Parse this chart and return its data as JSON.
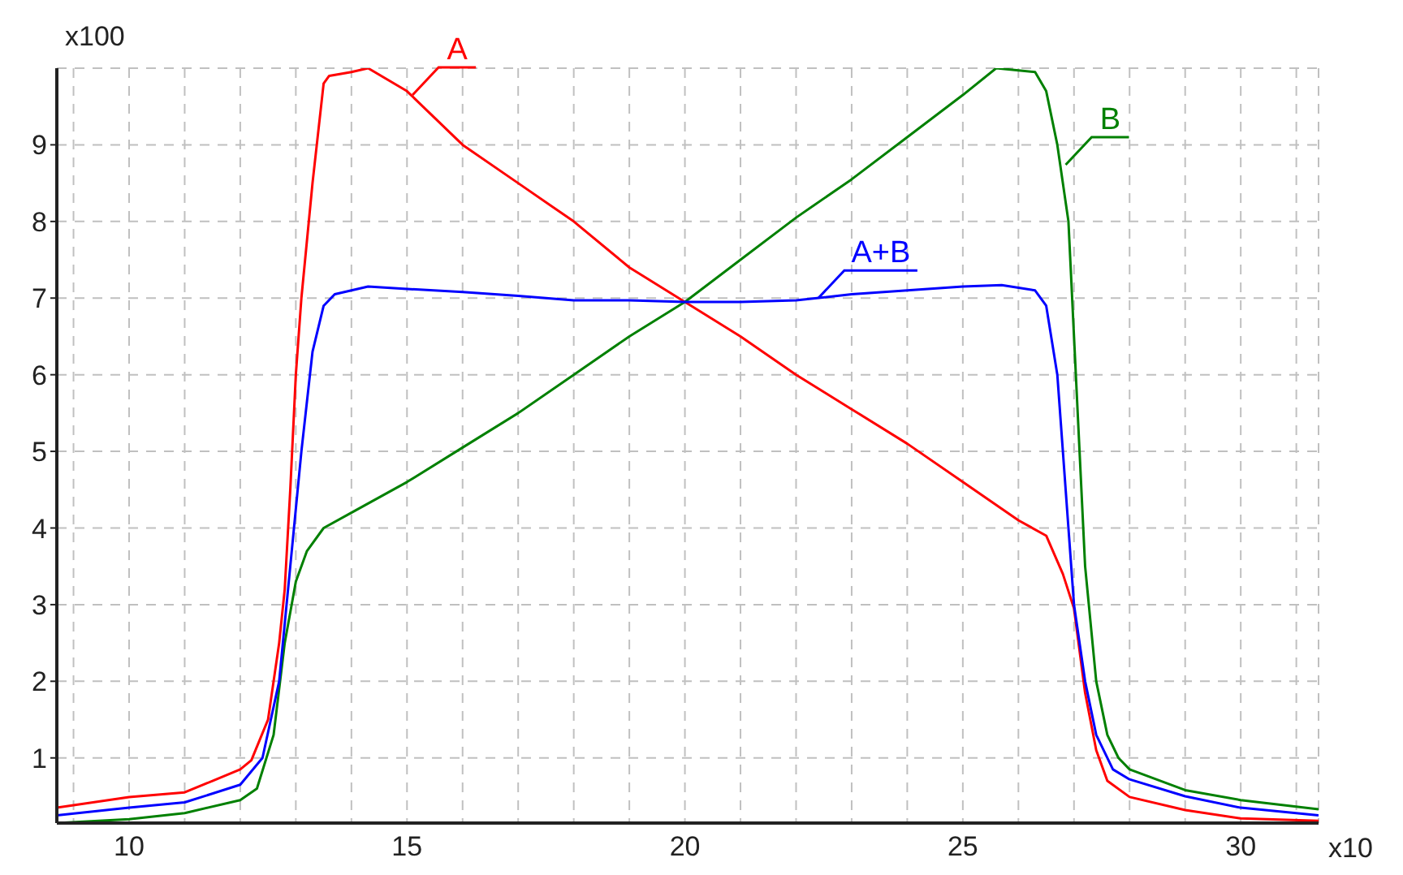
{
  "chart_data": {
    "type": "line",
    "xlabel": "x10",
    "ylabel": "x100",
    "xlim": [
      8.7,
      31.4
    ],
    "ylim": [
      0.15,
      10
    ],
    "xticks": [
      {
        "value": 9,
        "label": null
      },
      10,
      {
        "value": 11,
        "label": null
      },
      {
        "value": 12,
        "label": null
      },
      {
        "value": 13,
        "label": null
      },
      {
        "value": 14,
        "label": null
      },
      15,
      {
        "value": 16,
        "label": null
      },
      {
        "value": 17,
        "label": null
      },
      {
        "value": 18,
        "label": null
      },
      {
        "value": 19,
        "label": null
      },
      20,
      {
        "value": 21,
        "label": null
      },
      {
        "value": 22,
        "label": null
      },
      {
        "value": 23,
        "label": null
      },
      {
        "value": 24,
        "label": null
      },
      25,
      {
        "value": 26,
        "label": null
      },
      {
        "value": 27,
        "label": null
      },
      {
        "value": 28,
        "label": null
      },
      {
        "value": 29,
        "label": null
      },
      30,
      {
        "value": 31,
        "label": null
      }
    ],
    "yticks": [
      1,
      2,
      3,
      4,
      5,
      6,
      7,
      8,
      9
    ],
    "grid": true,
    "marker": "none",
    "line_style": "solid",
    "series": [
      {
        "color": "#ff0000",
        "x": [
          8.7,
          10,
          11,
          11.5,
          12,
          12.2,
          12.5,
          12.7,
          12.8,
          12.9,
          13.0,
          13.1,
          13.3,
          13.5,
          13.6,
          14.0,
          14.3,
          15,
          16,
          17,
          18,
          19,
          20,
          21,
          22,
          23,
          24,
          25,
          26,
          26.5,
          26.8,
          27.0,
          27.2,
          27.4,
          27.6,
          28,
          29,
          30,
          31.4
        ],
        "values": [
          0.35,
          0.49,
          0.55,
          0.7,
          0.85,
          0.97,
          1.5,
          2.5,
          3.2,
          4.5,
          6,
          7,
          8.5,
          9.8,
          9.9,
          9.95,
          10,
          9.7,
          9.0,
          8.5,
          8.0,
          7.4,
          6.95,
          6.5,
          6.0,
          5.55,
          5.1,
          4.6,
          4.1,
          3.9,
          3.4,
          2.95,
          1.85,
          1.1,
          0.7,
          0.49,
          0.32,
          0.21,
          0.18
        ]
      },
      {
        "color": "#008000",
        "x": [
          8.7,
          10,
          11,
          12,
          12.3,
          12.6,
          12.8,
          13.0,
          13.2,
          13.5,
          14,
          15,
          16,
          17,
          18,
          19,
          20,
          21,
          22,
          23,
          24,
          25,
          25.6,
          26.3,
          26.5,
          26.7,
          26.9,
          27.0,
          27.1,
          27.2,
          27.4,
          27.6,
          27.8,
          28,
          29,
          30,
          31.4
        ],
        "values": [
          0.15,
          0.2,
          0.28,
          0.45,
          0.6,
          1.3,
          2.5,
          3.3,
          3.7,
          4.0,
          4.2,
          4.6,
          5.05,
          5.5,
          6.0,
          6.5,
          6.95,
          7.5,
          8.05,
          8.55,
          9.1,
          9.65,
          10,
          9.95,
          9.7,
          9.0,
          8.0,
          6.5,
          5.0,
          3.5,
          2.0,
          1.3,
          1.0,
          0.85,
          0.58,
          0.45,
          0.33
        ]
      },
      {
        "color": "#0000ff",
        "x": [
          8.7,
          10,
          11,
          12,
          12.4,
          12.7,
          12.9,
          13.1,
          13.3,
          13.5,
          13.7,
          14.3,
          15,
          16,
          17,
          18,
          19,
          20,
          21,
          22,
          23,
          24,
          25,
          25.7,
          26.3,
          26.5,
          26.7,
          26.9,
          27.0,
          27.2,
          27.4,
          27.7,
          28,
          29,
          30,
          31.4
        ],
        "values": [
          0.25,
          0.35,
          0.42,
          0.65,
          1.0,
          2.0,
          3.5,
          5.0,
          6.3,
          6.9,
          7.05,
          7.15,
          7.12,
          7.08,
          7.03,
          6.97,
          6.97,
          6.95,
          6.95,
          6.97,
          7.05,
          7.1,
          7.15,
          7.17,
          7.1,
          6.9,
          6.0,
          4.0,
          3.0,
          2.0,
          1.3,
          0.85,
          0.72,
          0.5,
          0.35,
          0.25
        ]
      }
    ],
    "annotations": [
      {
        "text": "A",
        "x": 15.1,
        "y": 9.65
      },
      {
        "text": "A+B",
        "x": 22.4,
        "y": 7.0
      },
      {
        "text": "B",
        "x": 26.85,
        "y": 8.74
      }
    ]
  }
}
